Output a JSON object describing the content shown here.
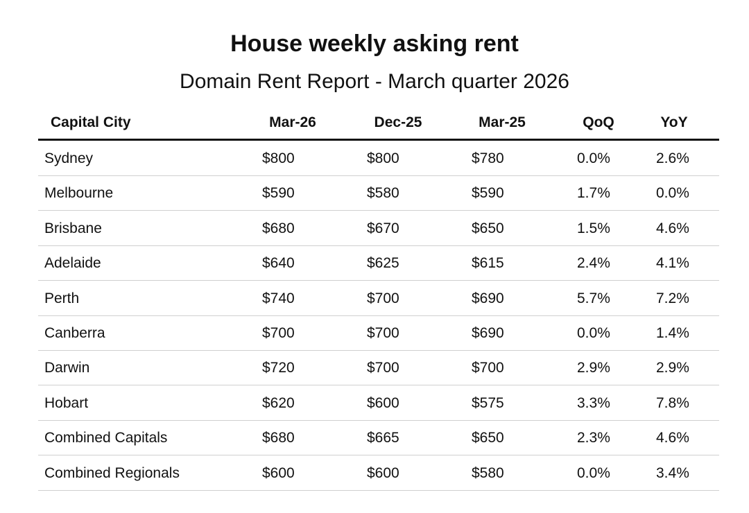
{
  "header": {
    "title": "House weekly asking rent",
    "subtitle": "Domain Rent Report - March quarter 2026"
  },
  "table": {
    "columns": [
      "Capital City",
      "Mar-26",
      "Dec-25",
      "Mar-25",
      "QoQ",
      "YoY"
    ],
    "rows": [
      [
        "Sydney",
        "$800",
        "$800",
        "$780",
        "0.0%",
        "2.6%"
      ],
      [
        "Melbourne",
        "$590",
        "$580",
        "$590",
        "1.7%",
        "0.0%"
      ],
      [
        "Brisbane",
        "$680",
        "$670",
        "$650",
        "1.5%",
        "4.6%"
      ],
      [
        "Adelaide",
        "$640",
        "$625",
        "$615",
        "2.4%",
        "4.1%"
      ],
      [
        "Perth",
        "$740",
        "$700",
        "$690",
        "5.7%",
        "7.2%"
      ],
      [
        "Canberra",
        "$700",
        "$700",
        "$690",
        "0.0%",
        "1.4%"
      ],
      [
        "Darwin",
        "$720",
        "$700",
        "$700",
        "2.9%",
        "2.9%"
      ],
      [
        "Hobart",
        "$620",
        "$600",
        "$575",
        "3.3%",
        "7.8%"
      ],
      [
        "Combined Capitals",
        "$680",
        "$665",
        "$650",
        "2.3%",
        "4.6%"
      ],
      [
        "Combined Regionals",
        "$600",
        "$600",
        "$580",
        "0.0%",
        "3.4%"
      ]
    ]
  }
}
